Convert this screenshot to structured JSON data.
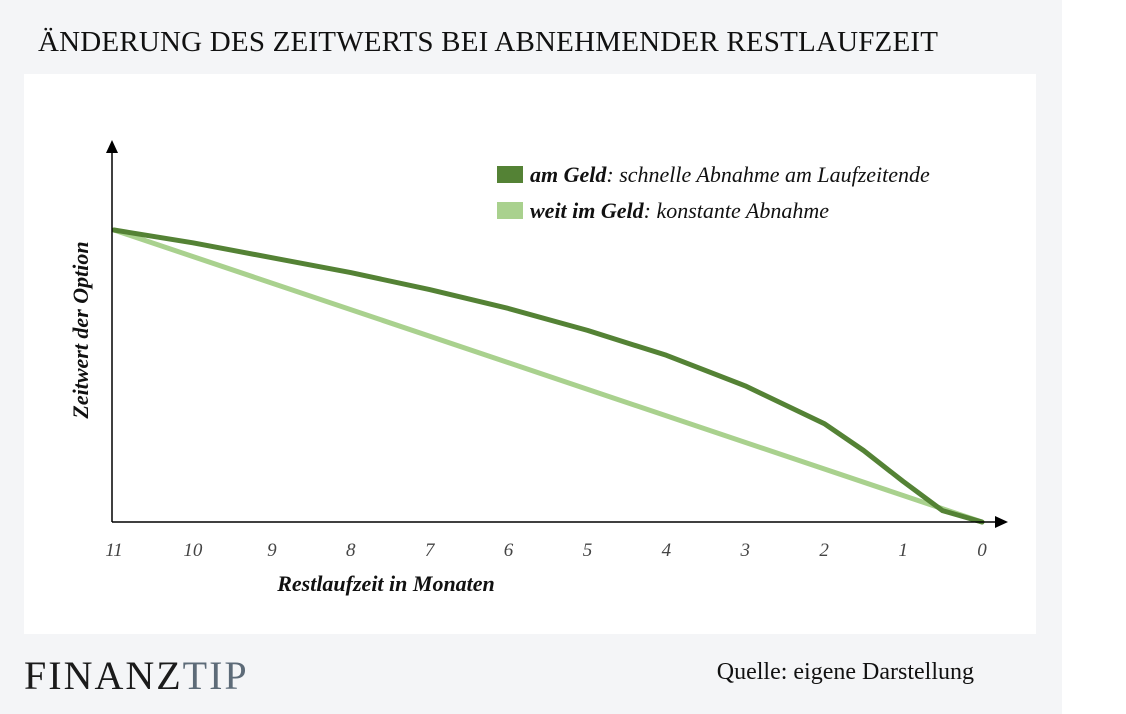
{
  "title": "ÄNDERUNG DES ZEITWERTS BEI ABNEHMENDER RESTLAUFZEIT",
  "logo": {
    "part1": "FINANZ",
    "part2": "TIP"
  },
  "source": "Quelle: eigene Darstellung",
  "colors": {
    "dark_green": "#548235",
    "light_green": "#a9d18e",
    "axis": "#000000"
  },
  "chart_data": {
    "type": "line",
    "xlabel": "Restlaufzeit in Monaten",
    "ylabel": "Zeitwert der Option",
    "x_ticks": [
      "11",
      "10",
      "9",
      "8",
      "7",
      "6",
      "5",
      "4",
      "3",
      "2",
      "1",
      "0"
    ],
    "xlim": [
      11,
      0
    ],
    "ylim": [
      0,
      100
    ],
    "x_reversed": true,
    "y_ticks_shown": false,
    "grid": false,
    "legend_position": "top-right",
    "series": [
      {
        "name": "am Geld",
        "legend_bold": "am Geld",
        "legend_rest": ": schnelle Abnahme am Laufzeitende",
        "color": "#548235",
        "x": [
          11,
          10,
          9,
          8,
          7,
          6,
          5,
          4,
          3,
          2,
          1.5,
          1,
          0.5,
          0
        ],
        "y": [
          100,
          95.6,
          90.5,
          85.4,
          79.6,
          73.1,
          65.6,
          57.1,
          46.6,
          33.7,
          24.5,
          13.9,
          3.9,
          0
        ]
      },
      {
        "name": "weit im Geld",
        "legend_bold": "weit im Geld",
        "legend_rest": ": konstante Abnahme",
        "color": "#a9d18e",
        "x": [
          11,
          0
        ],
        "y": [
          100,
          0
        ]
      }
    ]
  }
}
